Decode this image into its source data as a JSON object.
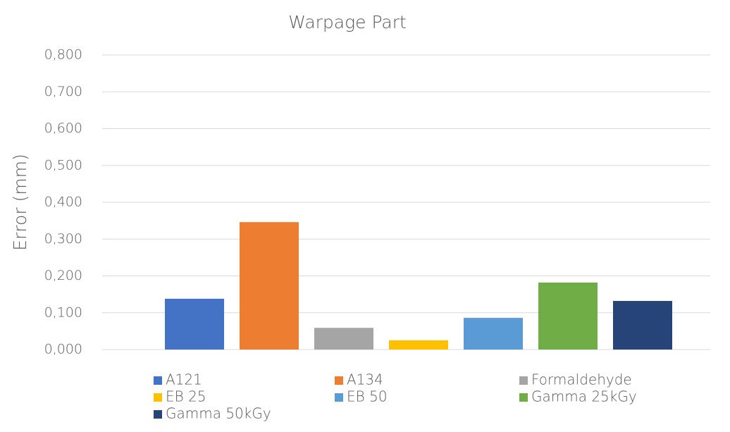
{
  "chart_data": {
    "type": "bar",
    "title": "Warpage Part",
    "y_label": "Error (mm)",
    "categories": [
      null
    ],
    "series": [
      {
        "name": "A121",
        "color": "#4472c4",
        "values": [
          0.138
        ]
      },
      {
        "name": "A134",
        "color": "#ed7d31",
        "values": [
          0.346
        ]
      },
      {
        "name": "Formaldehyde",
        "color": "#a5a5a5",
        "values": [
          0.059
        ]
      },
      {
        "name": "EB 25",
        "color": "#ffc000",
        "values": [
          0.025
        ]
      },
      {
        "name": "EB 50",
        "color": "#5b9bd5",
        "values": [
          0.086
        ]
      },
      {
        "name": "Gamma 25kGy",
        "color": "#70ad47",
        "values": [
          0.182
        ]
      },
      {
        "name": "Gamma 50kGy",
        "color": "#264478",
        "values": [
          0.132
        ]
      }
    ],
    "ylim": [
      0,
      0.8
    ],
    "yticks": [
      {
        "value": 0,
        "label": "0,000"
      },
      {
        "value": 0.1,
        "label": "0,100"
      },
      {
        "value": 0.2,
        "label": "0,200"
      },
      {
        "value": 0.3,
        "label": "0,300"
      },
      {
        "value": 0.4,
        "label": "0,400"
      },
      {
        "value": 0.5,
        "label": "0,500"
      },
      {
        "value": 0.6,
        "label": "0,600"
      },
      {
        "value": 0.7,
        "label": "0,700"
      },
      {
        "value": 0.8,
        "label": "0,800"
      }
    ],
    "grid": true,
    "legend": "bottom"
  }
}
